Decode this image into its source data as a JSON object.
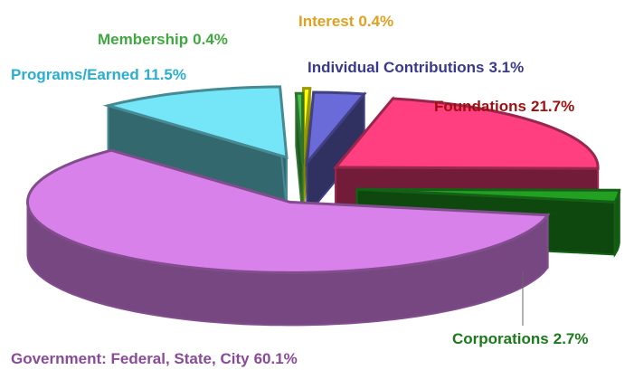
{
  "chart_data": {
    "type": "pie",
    "categories": [
      "Interest",
      "Individual Contributions",
      "Foundations",
      "Corporations",
      "Government: Federal, State, City",
      "Programs/Earned",
      "Membership"
    ],
    "values": [
      0.4,
      3.1,
      21.7,
      2.7,
      60.1,
      11.5,
      0.4
    ],
    "value_labels": [
      "0.4%",
      "3.1%",
      "21.7%",
      "2.7%",
      "60.1%",
      "11.5%",
      "0.4%"
    ],
    "colors": [
      "#ffff00",
      "#6a6ad8",
      "#ff3f7f",
      "#22a022",
      "#d981ea",
      "#74e6f7",
      "#4cc04c"
    ],
    "label_colors": [
      "#e0a020",
      "#3a3a8c",
      "#a01010",
      "#1a7a1a",
      "#8a4a9a",
      "#2aaed0",
      "#40a840"
    ]
  }
}
